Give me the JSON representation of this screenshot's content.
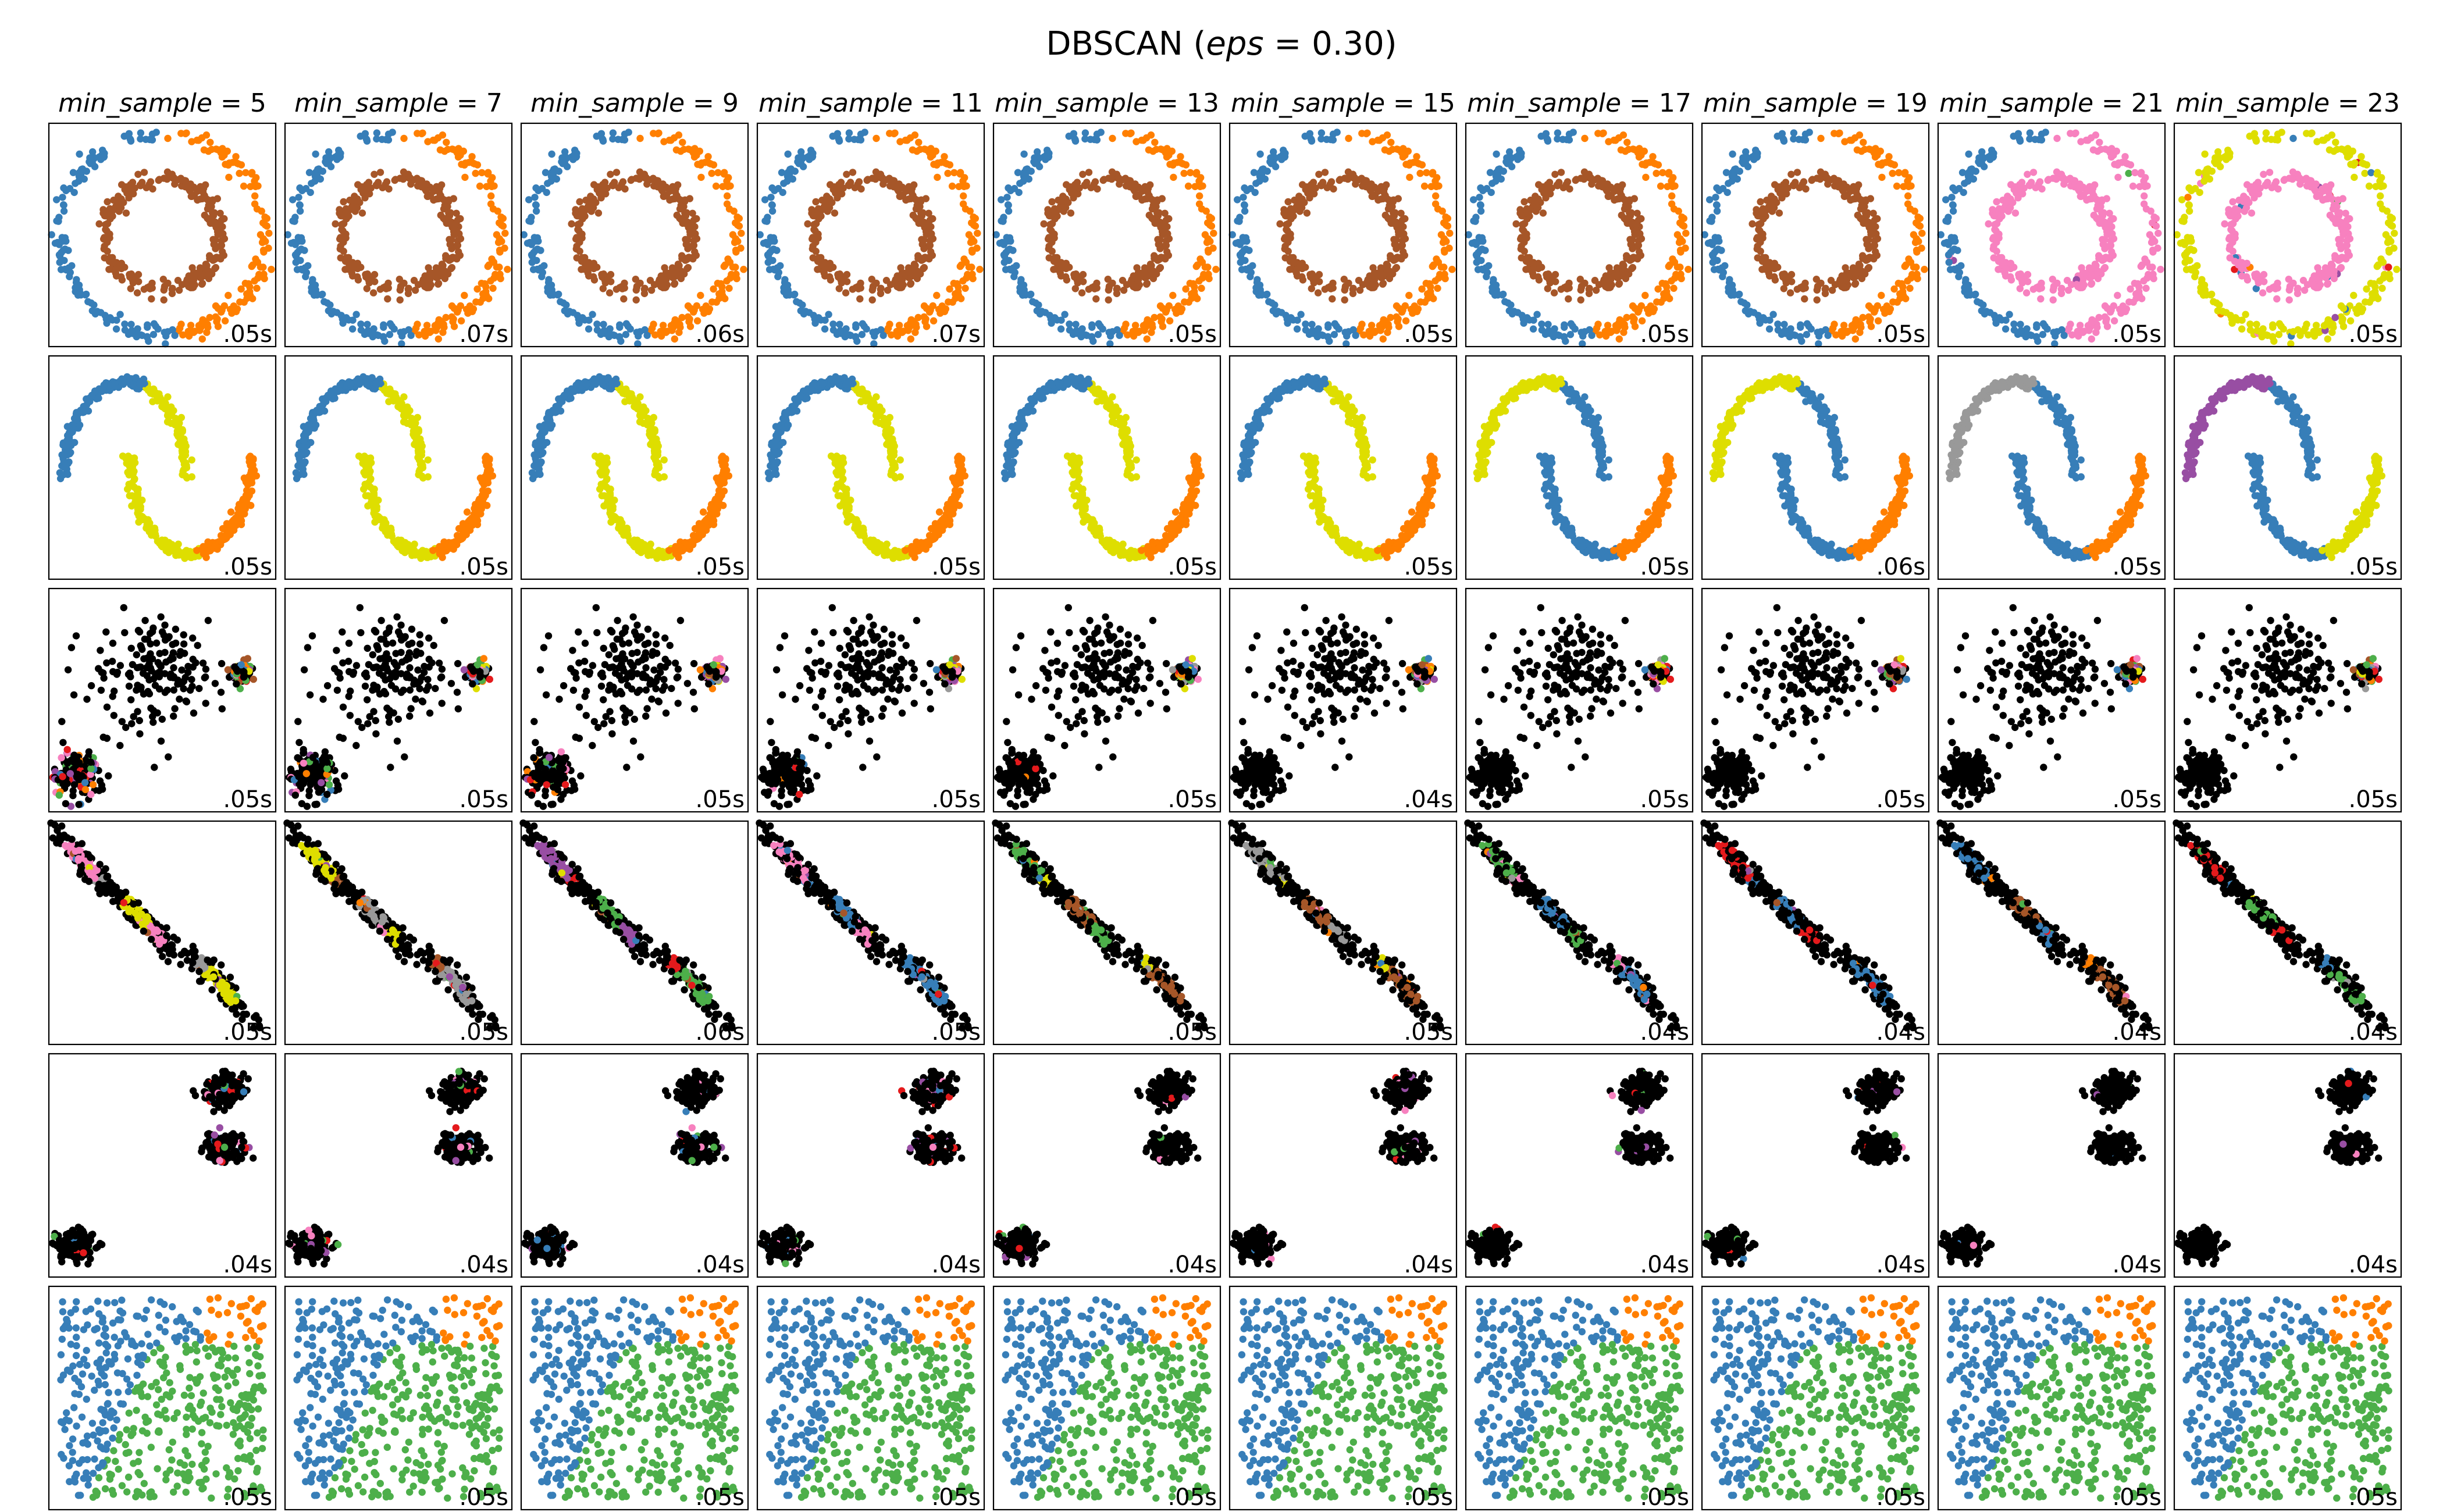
{
  "figure": {
    "title_prefix": "DBSCAN (",
    "title_param": "eps",
    "title_suffix": " = 0.30)"
  },
  "chart_data": {
    "type": "scatter",
    "title": "DBSCAN (eps = 0.30)",
    "grid": false,
    "column_param_name": "min_sample",
    "columns": [
      5,
      7,
      9,
      11,
      13,
      15,
      17,
      19,
      21,
      23
    ],
    "column_titles": [
      "min_sample = 5",
      "min_sample = 7",
      "min_sample = 9",
      "min_sample = 11",
      "min_sample = 13",
      "min_sample = 15",
      "min_sample = 17",
      "min_sample = 19",
      "min_sample = 21",
      "min_sample = 23"
    ],
    "row_datasets": [
      "noisy_circles",
      "noisy_moons",
      "varied",
      "aniso",
      "blobs",
      "no_structure"
    ],
    "timings": [
      [
        ".05s",
        ".07s",
        ".06s",
        ".07s",
        ".05s",
        ".05s",
        ".05s",
        ".05s",
        ".05s",
        ".05s"
      ],
      [
        ".05s",
        ".05s",
        ".05s",
        ".05s",
        ".05s",
        ".05s",
        ".05s",
        ".06s",
        ".05s",
        ".05s"
      ],
      [
        ".05s",
        ".05s",
        ".05s",
        ".05s",
        ".05s",
        ".04s",
        ".05s",
        ".05s",
        ".05s",
        ".05s"
      ],
      [
        ".05s",
        ".05s",
        ".06s",
        ".05s",
        ".05s",
        ".05s",
        ".04s",
        ".04s",
        ".04s",
        ".04s"
      ],
      [
        ".04s",
        ".04s",
        ".04s",
        ".04s",
        ".04s",
        ".04s",
        ".04s",
        ".04s",
        ".04s",
        ".04s"
      ],
      [
        ".05s",
        ".05s",
        ".05s",
        ".05s",
        ".05s",
        ".05s",
        ".05s",
        ".05s",
        ".05s",
        ".05s"
      ]
    ],
    "palette": {
      "blue": "#377eb8",
      "orange": "#ff7f00",
      "green": "#4daf4a",
      "pink": "#f781bf",
      "brown": "#a65628",
      "purple": "#984ea3",
      "grey": "#999999",
      "red": "#e41a1c",
      "yellow": "#dede00",
      "noise": "#000000"
    },
    "row_cluster_colors": [
      [
        [
          "blue",
          "orange",
          "brown"
        ],
        [
          "blue",
          "orange",
          "brown"
        ],
        [
          "blue",
          "orange",
          "brown"
        ],
        [
          "blue",
          "orange",
          "brown"
        ],
        [
          "blue",
          "orange",
          "brown"
        ],
        [
          "blue",
          "orange",
          "brown"
        ],
        [
          "blue",
          "orange",
          "brown"
        ],
        [
          "blue",
          "orange",
          "brown"
        ],
        [
          "blue",
          "pink",
          "pink"
        ],
        [
          "yellow",
          "yellow",
          "pink"
        ]
      ],
      [
        [
          "blue",
          "yellow",
          "orange"
        ],
        [
          "blue",
          "yellow",
          "orange"
        ],
        [
          "blue",
          "yellow",
          "orange"
        ],
        [
          "blue",
          "yellow",
          "orange"
        ],
        [
          "blue",
          "yellow",
          "orange"
        ],
        [
          "blue",
          "yellow",
          "orange"
        ],
        [
          "yellow",
          "blue",
          "orange"
        ],
        [
          "yellow",
          "blue",
          "orange"
        ],
        [
          "grey",
          "blue",
          "orange"
        ],
        [
          "purple",
          "blue",
          "yellow"
        ]
      ],
      [
        [
          "noise",
          "noise",
          "noise"
        ],
        [
          "noise",
          "noise",
          "noise"
        ],
        [
          "noise",
          "noise",
          "noise"
        ],
        [
          "noise",
          "noise",
          "noise"
        ],
        [
          "noise",
          "noise",
          "noise"
        ],
        [
          "noise",
          "noise",
          "noise"
        ],
        [
          "noise",
          "noise",
          "noise"
        ],
        [
          "noise",
          "noise",
          "noise"
        ],
        [
          "noise",
          "noise",
          "noise"
        ],
        [
          "noise",
          "noise",
          "noise"
        ]
      ],
      [
        [
          "pink",
          "grey",
          "yellow"
        ],
        [
          "yellow",
          "brown",
          "grey"
        ],
        [
          "purple",
          "red",
          "green"
        ],
        [
          "pink",
          "blue",
          "blue"
        ],
        [
          "green",
          "yellow",
          "brown"
        ],
        [
          "grey",
          "yellow",
          "brown"
        ],
        [
          "green",
          "pink",
          "blue"
        ],
        [
          "red",
          "blue",
          "blue"
        ],
        [
          "blue",
          "orange",
          "brown"
        ],
        [
          "red",
          "blue",
          "green"
        ]
      ],
      [
        [
          "noise",
          "noise",
          "noise"
        ],
        [
          "noise",
          "noise",
          "noise"
        ],
        [
          "noise",
          "noise",
          "noise"
        ],
        [
          "noise",
          "noise",
          "noise"
        ],
        [
          "noise",
          "noise",
          "noise"
        ],
        [
          "noise",
          "noise",
          "noise"
        ],
        [
          "noise",
          "noise",
          "noise"
        ],
        [
          "noise",
          "noise",
          "noise"
        ],
        [
          "noise",
          "noise",
          "noise"
        ],
        [
          "noise",
          "noise",
          "noise"
        ]
      ],
      [
        [
          "orange",
          "blue",
          "green"
        ],
        [
          "orange",
          "blue",
          "green"
        ],
        [
          "orange",
          "blue",
          "green"
        ],
        [
          "orange",
          "blue",
          "green"
        ],
        [
          "orange",
          "blue",
          "green"
        ],
        [
          "orange",
          "blue",
          "green"
        ],
        [
          "orange",
          "blue",
          "green"
        ],
        [
          "orange",
          "blue",
          "green"
        ],
        [
          "orange",
          "blue",
          "green"
        ],
        [
          "orange",
          "blue",
          "green"
        ]
      ]
    ]
  }
}
